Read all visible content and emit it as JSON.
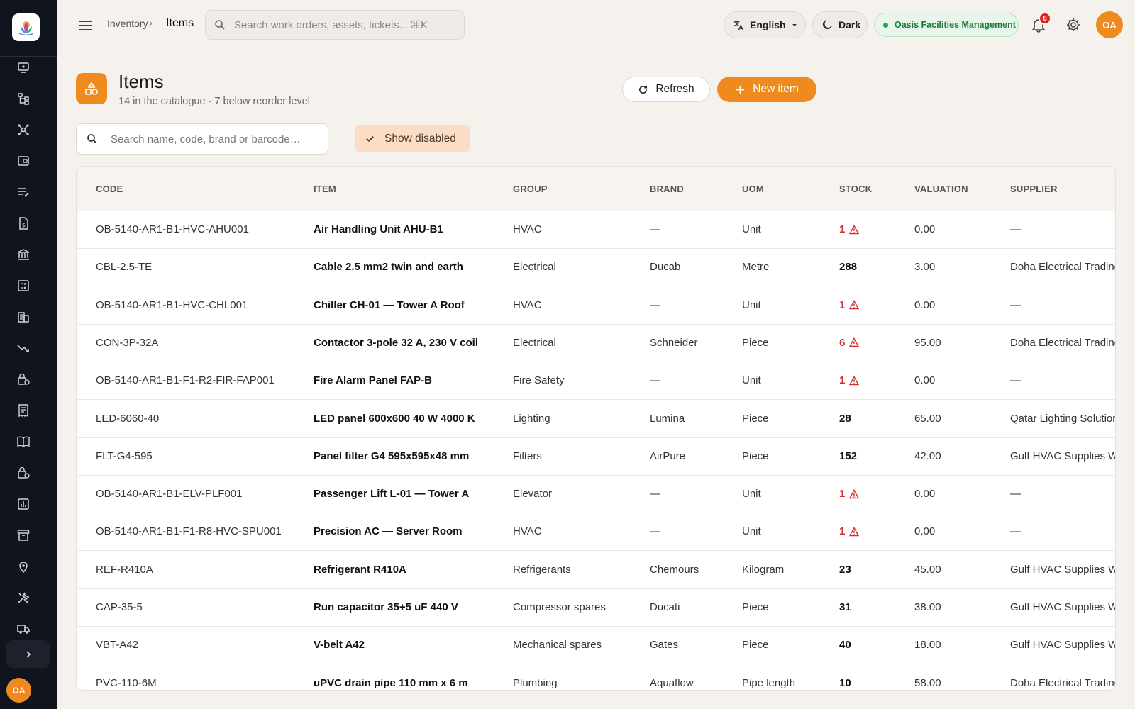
{
  "app": {
    "logo_name": "app-logo"
  },
  "topbar": {
    "breadcrumb_parent": "Inventory",
    "breadcrumb_sep": "›",
    "breadcrumb_current": "Items",
    "search_placeholder": "Search work orders, assets, tickets...",
    "search_shortcut": "⌘K",
    "language": "English",
    "theme": "Dark",
    "org": "Oasis Facilities Management",
    "notifications_count": "6",
    "avatar": "OA"
  },
  "page": {
    "title": "Items",
    "subtitle": "14 in the catalogue · 7 below reorder level",
    "refresh_label": "Refresh",
    "new_label": "New item",
    "filter_placeholder": "Search name, code, brand or barcode…",
    "show_disabled": "Show disabled"
  },
  "sidebar": {
    "avatar": "OA"
  },
  "table": {
    "headers": {
      "code": "CODE",
      "item": "ITEM",
      "group": "GROUP",
      "brand": "BRAND",
      "uom": "UOM",
      "stock": "STOCK",
      "valuation": "VALUATION",
      "supplier": "SUPPLIER"
    },
    "rows": [
      {
        "code": "OB-5140-AR1-B1-HVC-AHU001",
        "item": "Air Handling Unit AHU-B1",
        "group": "HVAC",
        "brand": "—",
        "uom": "Unit",
        "stock": "1",
        "low": true,
        "valuation": "0.00",
        "supplier": "—"
      },
      {
        "code": "CBL-2.5-TE",
        "item": "Cable 2.5 mm2 twin and earth",
        "group": "Electrical",
        "brand": "Ducab",
        "uom": "Metre",
        "stock": "288",
        "low": false,
        "valuation": "3.00",
        "supplier": "Doha Electrical Trading"
      },
      {
        "code": "OB-5140-AR1-B1-HVC-CHL001",
        "item": "Chiller CH-01 — Tower A Roof",
        "group": "HVAC",
        "brand": "—",
        "uom": "Unit",
        "stock": "1",
        "low": true,
        "valuation": "0.00",
        "supplier": "—"
      },
      {
        "code": "CON-3P-32A",
        "item": "Contactor 3-pole 32 A, 230 V coil",
        "group": "Electrical",
        "brand": "Schneider",
        "uom": "Piece",
        "stock": "6",
        "low": true,
        "valuation": "95.00",
        "supplier": "Doha Electrical Trading"
      },
      {
        "code": "OB-5140-AR1-B1-F1-R2-FIR-FAP001",
        "item": "Fire Alarm Panel FAP-B",
        "group": "Fire Safety",
        "brand": "—",
        "uom": "Unit",
        "stock": "1",
        "low": true,
        "valuation": "0.00",
        "supplier": "—"
      },
      {
        "code": "LED-6060-40",
        "item": "LED panel 600x600 40 W 4000 K",
        "group": "Lighting",
        "brand": "Lumina",
        "uom": "Piece",
        "stock": "28",
        "low": false,
        "valuation": "65.00",
        "supplier": "Qatar Lighting Solutions"
      },
      {
        "code": "FLT-G4-595",
        "item": "Panel filter G4 595x595x48 mm",
        "group": "Filters",
        "brand": "AirPure",
        "uom": "Piece",
        "stock": "152",
        "low": false,
        "valuation": "42.00",
        "supplier": "Gulf HVAC Supplies WLL"
      },
      {
        "code": "OB-5140-AR1-B1-ELV-PLF001",
        "item": "Passenger Lift L-01 — Tower A",
        "group": "Elevator",
        "brand": "—",
        "uom": "Unit",
        "stock": "1",
        "low": true,
        "valuation": "0.00",
        "supplier": "—"
      },
      {
        "code": "OB-5140-AR1-B1-F1-R8-HVC-SPU001",
        "item": "Precision AC — Server Room",
        "group": "HVAC",
        "brand": "—",
        "uom": "Unit",
        "stock": "1",
        "low": true,
        "valuation": "0.00",
        "supplier": "—"
      },
      {
        "code": "REF-R410A",
        "item": "Refrigerant R410A",
        "group": "Refrigerants",
        "brand": "Chemours",
        "uom": "Kilogram",
        "stock": "23",
        "low": false,
        "valuation": "45.00",
        "supplier": "Gulf HVAC Supplies WLL"
      },
      {
        "code": "CAP-35-5",
        "item": "Run capacitor 35+5 uF 440 V",
        "group": "Compressor spares",
        "brand": "Ducati",
        "uom": "Piece",
        "stock": "31",
        "low": false,
        "valuation": "38.00",
        "supplier": "Gulf HVAC Supplies WLL"
      },
      {
        "code": "VBT-A42",
        "item": "V-belt A42",
        "group": "Mechanical spares",
        "brand": "Gates",
        "uom": "Piece",
        "stock": "40",
        "low": false,
        "valuation": "18.00",
        "supplier": "Gulf HVAC Supplies WLL"
      },
      {
        "code": "PVC-110-6M",
        "item": "uPVC drain pipe 110 mm x 6 m",
        "group": "Plumbing",
        "brand": "Aquaflow",
        "uom": "Pipe length",
        "stock": "10",
        "low": false,
        "valuation": "58.00",
        "supplier": "Doha Electrical Trading"
      }
    ]
  },
  "colors": {
    "accent": "#ef8a1f",
    "sidebar": "#10141c",
    "low_stock": "#d32f2f",
    "org_green": "#1c7a36"
  }
}
